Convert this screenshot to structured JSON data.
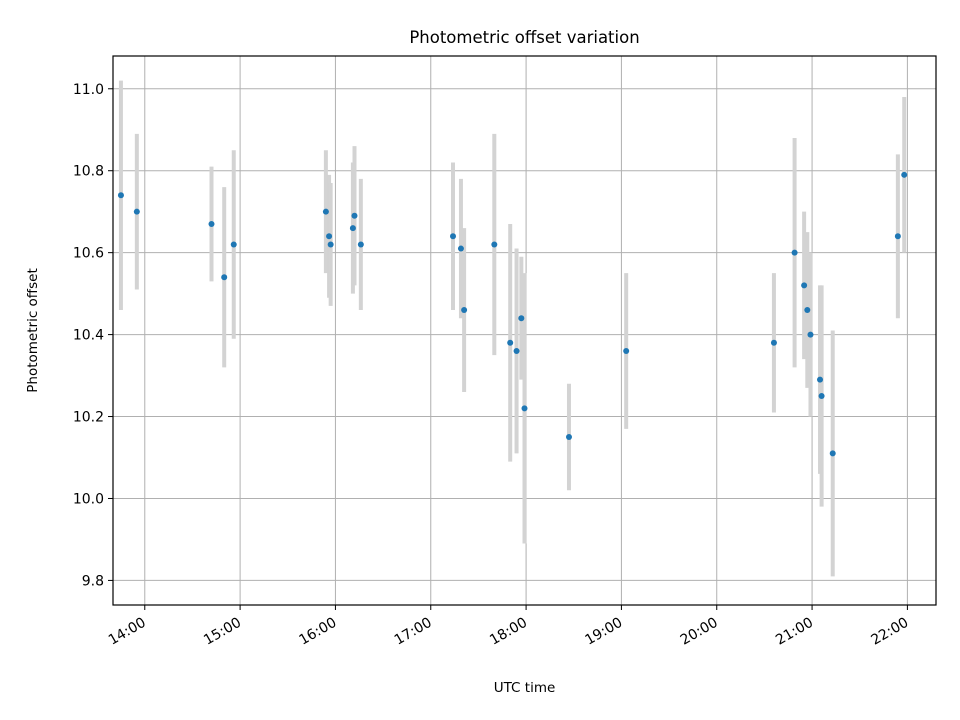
{
  "chart_data": {
    "type": "scatter",
    "title": "Photometric offset variation",
    "xlabel": "UTC time",
    "ylabel": "Photometric offset",
    "xlim": [
      "13:40",
      "22:18"
    ],
    "ylim": [
      9.74,
      11.08
    ],
    "grid": true,
    "legend": "none",
    "x_ticks": [
      "14:00",
      "15:00",
      "16:00",
      "17:00",
      "18:00",
      "19:00",
      "20:00",
      "21:00",
      "22:00"
    ],
    "y_ticks": [
      9.8,
      10.0,
      10.2,
      10.4,
      10.6,
      10.8,
      11.0
    ],
    "colors": {
      "point": "#1f77b4",
      "errorbar": "#d3d3d3",
      "grid": "#b0b0b0"
    },
    "series": [
      {
        "points": [
          {
            "x": "13:45",
            "y": 10.74,
            "err": 0.28
          },
          {
            "x": "13:55",
            "y": 10.7,
            "err": 0.19
          },
          {
            "x": "14:42",
            "y": 10.67,
            "err": 0.14
          },
          {
            "x": "14:50",
            "y": 10.54,
            "err": 0.22
          },
          {
            "x": "14:56",
            "y": 10.62,
            "err": 0.23
          },
          {
            "x": "15:54",
            "y": 10.7,
            "err": 0.15
          },
          {
            "x": "15:56",
            "y": 10.64,
            "err": 0.15
          },
          {
            "x": "15:57",
            "y": 10.62,
            "err": 0.15
          },
          {
            "x": "16:11",
            "y": 10.66,
            "err": 0.16
          },
          {
            "x": "16:12",
            "y": 10.69,
            "err": 0.17
          },
          {
            "x": "16:16",
            "y": 10.62,
            "err": 0.16
          },
          {
            "x": "17:14",
            "y": 10.64,
            "err": 0.18
          },
          {
            "x": "17:19",
            "y": 10.61,
            "err": 0.17
          },
          {
            "x": "17:21",
            "y": 10.46,
            "err": 0.2
          },
          {
            "x": "17:40",
            "y": 10.62,
            "err": 0.27
          },
          {
            "x": "17:50",
            "y": 10.38,
            "err": 0.29
          },
          {
            "x": "17:54",
            "y": 10.36,
            "err": 0.25
          },
          {
            "x": "17:57",
            "y": 10.44,
            "err": 0.15
          },
          {
            "x": "17:59",
            "y": 10.22,
            "err": 0.33
          },
          {
            "x": "18:27",
            "y": 10.15,
            "err": 0.13
          },
          {
            "x": "19:03",
            "y": 10.36,
            "err": 0.19
          },
          {
            "x": "20:36",
            "y": 10.38,
            "err": 0.17
          },
          {
            "x": "20:49",
            "y": 10.6,
            "err": 0.28
          },
          {
            "x": "20:55",
            "y": 10.52,
            "err": 0.18
          },
          {
            "x": "20:57",
            "y": 10.46,
            "err": 0.19
          },
          {
            "x": "20:59",
            "y": 10.4,
            "err": 0.2
          },
          {
            "x": "21:05",
            "y": 10.29,
            "err": 0.23
          },
          {
            "x": "21:06",
            "y": 10.25,
            "err": 0.27
          },
          {
            "x": "21:13",
            "y": 10.11,
            "err": 0.3
          },
          {
            "x": "21:54",
            "y": 10.64,
            "err": 0.2
          },
          {
            "x": "21:58",
            "y": 10.79,
            "err": 0.19
          }
        ]
      }
    ]
  }
}
